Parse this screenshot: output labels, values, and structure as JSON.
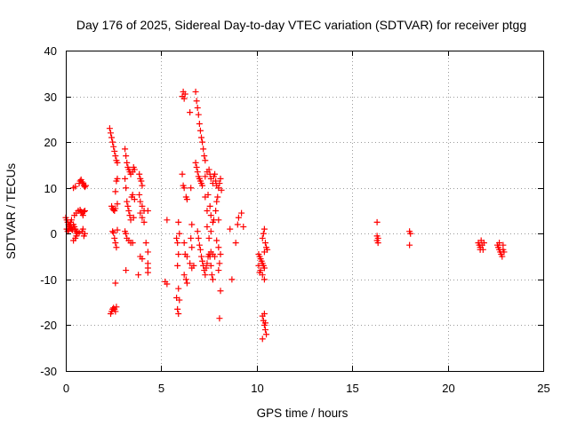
{
  "chart_data": {
    "type": "scatter",
    "title": "Day 176 of 2025, Sidereal Day-to-day VTEC variation (SDTVAR) for receiver ptgg",
    "xlabel": "GPS time / hours",
    "ylabel": "SDTVAR / TECUs",
    "xlim": [
      0,
      25
    ],
    "ylim": [
      -30,
      40
    ],
    "xticks": [
      0,
      5,
      10,
      15,
      20,
      25
    ],
    "yticks": [
      -30,
      -20,
      -10,
      0,
      10,
      20,
      30,
      40
    ],
    "grid": true,
    "marker": "plus",
    "color": "#ff0000",
    "series": [
      {
        "name": "SDTVAR",
        "points": [
          [
            0.0,
            3.5
          ],
          [
            0.05,
            3.0
          ],
          [
            0.1,
            2.5
          ],
          [
            0.15,
            2.0
          ],
          [
            0.2,
            1.5
          ],
          [
            0.25,
            1.2
          ],
          [
            0.3,
            1.0
          ],
          [
            0.35,
            0.8
          ],
          [
            0.05,
            1.0
          ],
          [
            0.1,
            0.5
          ],
          [
            0.15,
            0.8
          ],
          [
            0.2,
            1.8
          ],
          [
            0.25,
            2.5
          ],
          [
            0.3,
            3.0
          ],
          [
            0.4,
            2.0
          ],
          [
            0.45,
            1.5
          ],
          [
            0.5,
            1.0
          ],
          [
            0.55,
            0.5
          ],
          [
            0.6,
            0.3
          ],
          [
            0.4,
            -1.5
          ],
          [
            0.5,
            -1.0
          ],
          [
            0.55,
            -0.5
          ],
          [
            0.6,
            0.0
          ],
          [
            0.7,
            0.2
          ],
          [
            0.85,
            0.5
          ],
          [
            0.9,
            1.0
          ],
          [
            0.95,
            -0.5
          ],
          [
            1.0,
            0.0
          ],
          [
            0.45,
            4.0
          ],
          [
            0.55,
            4.5
          ],
          [
            0.65,
            5.0
          ],
          [
            0.75,
            5.2
          ],
          [
            0.8,
            4.8
          ],
          [
            0.85,
            4.5
          ],
          [
            0.9,
            4.0
          ],
          [
            0.95,
            4.8
          ],
          [
            1.0,
            5.0
          ],
          [
            0.4,
            10.0
          ],
          [
            0.5,
            10.3
          ],
          [
            0.7,
            11.0
          ],
          [
            0.75,
            11.5
          ],
          [
            0.8,
            11.8
          ],
          [
            0.85,
            11.3
          ],
          [
            0.9,
            11.0
          ],
          [
            0.95,
            10.5
          ],
          [
            1.0,
            10.2
          ],
          [
            1.05,
            10.5
          ],
          [
            2.3,
            23.0
          ],
          [
            2.35,
            22.0
          ],
          [
            2.4,
            21.0
          ],
          [
            2.45,
            20.0
          ],
          [
            2.5,
            19.0
          ],
          [
            2.55,
            18.0
          ],
          [
            2.6,
            17.0
          ],
          [
            2.65,
            16.0
          ],
          [
            2.7,
            15.5
          ],
          [
            2.4,
            6.0
          ],
          [
            2.45,
            5.5
          ],
          [
            2.5,
            5.2
          ],
          [
            2.55,
            5.0
          ],
          [
            2.6,
            5.5
          ],
          [
            2.7,
            6.5
          ],
          [
            2.6,
            9.2
          ],
          [
            2.65,
            11.5
          ],
          [
            2.7,
            12.0
          ],
          [
            2.45,
            0.5
          ],
          [
            2.5,
            0.2
          ],
          [
            2.55,
            -1.0
          ],
          [
            2.6,
            -2.0
          ],
          [
            2.65,
            -3.0
          ],
          [
            2.7,
            0.8
          ],
          [
            2.6,
            -10.8
          ],
          [
            2.35,
            -17.5
          ],
          [
            2.4,
            -17.0
          ],
          [
            2.45,
            -16.5
          ],
          [
            2.5,
            -16.2
          ],
          [
            2.55,
            -16.5
          ],
          [
            2.6,
            -17.0
          ],
          [
            2.65,
            -16.0
          ],
          [
            3.1,
            18.5
          ],
          [
            3.15,
            17.0
          ],
          [
            3.2,
            15.5
          ],
          [
            3.25,
            14.5
          ],
          [
            3.3,
            14.0
          ],
          [
            3.35,
            13.5
          ],
          [
            3.4,
            13.0
          ],
          [
            3.5,
            13.5
          ],
          [
            3.55,
            14.5
          ],
          [
            3.6,
            14.0
          ],
          [
            3.1,
            12.0
          ],
          [
            3.15,
            10.0
          ],
          [
            3.2,
            7.0
          ],
          [
            3.25,
            6.0
          ],
          [
            3.3,
            5.0
          ],
          [
            3.35,
            4.0
          ],
          [
            3.4,
            3.0
          ],
          [
            3.45,
            8.0
          ],
          [
            3.5,
            8.5
          ],
          [
            3.55,
            3.5
          ],
          [
            3.6,
            7.5
          ],
          [
            3.1,
            0.5
          ],
          [
            3.15,
            0.0
          ],
          [
            3.2,
            -1.0
          ],
          [
            3.3,
            -1.5
          ],
          [
            3.4,
            -2.0
          ],
          [
            3.5,
            -2.0
          ],
          [
            3.15,
            -8.0
          ],
          [
            3.85,
            13.0
          ],
          [
            3.9,
            12.0
          ],
          [
            3.95,
            11.5
          ],
          [
            4.0,
            10.5
          ],
          [
            3.85,
            8.5
          ],
          [
            3.9,
            7.0
          ],
          [
            4.0,
            6.0
          ],
          [
            4.1,
            5.0
          ],
          [
            3.9,
            4.5
          ],
          [
            4.0,
            3.5
          ],
          [
            4.1,
            2.5
          ],
          [
            4.3,
            5.0
          ],
          [
            4.2,
            -2.0
          ],
          [
            4.3,
            -4.0
          ],
          [
            4.3,
            -6.5
          ],
          [
            4.3,
            -7.5
          ],
          [
            4.3,
            -8.5
          ],
          [
            3.9,
            -5.0
          ],
          [
            4.0,
            -5.5
          ],
          [
            3.8,
            -9.0
          ],
          [
            5.3,
            3.0
          ],
          [
            5.2,
            -10.5
          ],
          [
            5.3,
            -11.0
          ],
          [
            5.8,
            -1.0
          ],
          [
            5.85,
            -2.0
          ],
          [
            5.9,
            -4.5
          ],
          [
            5.85,
            -7.0
          ],
          [
            5.9,
            -12.0
          ],
          [
            5.95,
            -14.5
          ],
          [
            5.8,
            -14.0
          ],
          [
            5.85,
            -16.5
          ],
          [
            5.9,
            -17.5
          ],
          [
            5.9,
            2.5
          ],
          [
            5.95,
            0.0
          ],
          [
            6.1,
            30.0
          ],
          [
            6.15,
            31.0
          ],
          [
            6.2,
            29.5
          ],
          [
            6.25,
            30.5
          ],
          [
            6.1,
            13.0
          ],
          [
            6.15,
            10.5
          ],
          [
            6.2,
            10.0
          ],
          [
            6.3,
            8.0
          ],
          [
            6.35,
            7.5
          ],
          [
            6.2,
            -2.0
          ],
          [
            6.25,
            -4.5
          ],
          [
            6.35,
            -5.0
          ],
          [
            6.2,
            -9.0
          ],
          [
            6.3,
            -10.0
          ],
          [
            6.35,
            -10.8
          ],
          [
            6.5,
            -6.5
          ],
          [
            6.6,
            -7.5
          ],
          [
            6.5,
            26.5
          ],
          [
            6.55,
            10.0
          ],
          [
            6.6,
            2.0
          ],
          [
            6.55,
            -1.0
          ],
          [
            6.6,
            -3.0
          ],
          [
            6.7,
            -7.0
          ],
          [
            6.8,
            31.0
          ],
          [
            6.85,
            29.0
          ],
          [
            6.9,
            27.5
          ],
          [
            6.95,
            26.0
          ],
          [
            7.0,
            24.0
          ],
          [
            7.05,
            22.5
          ],
          [
            7.1,
            21.0
          ],
          [
            7.15,
            20.0
          ],
          [
            7.2,
            18.5
          ],
          [
            7.25,
            17.0
          ],
          [
            7.3,
            16.0
          ],
          [
            6.8,
            15.5
          ],
          [
            6.85,
            14.5
          ],
          [
            6.9,
            13.5
          ],
          [
            6.95,
            12.5
          ],
          [
            7.0,
            12.0
          ],
          [
            7.05,
            11.5
          ],
          [
            7.1,
            11.0
          ],
          [
            7.15,
            10.5
          ],
          [
            7.3,
            12.5
          ],
          [
            7.4,
            13.5
          ],
          [
            7.5,
            14.0
          ],
          [
            7.55,
            13.0
          ],
          [
            7.6,
            12.0
          ],
          [
            7.7,
            11.0
          ],
          [
            7.75,
            12.5
          ],
          [
            7.8,
            13.0
          ],
          [
            7.85,
            11.5
          ],
          [
            7.9,
            10.5
          ],
          [
            8.0,
            10.0
          ],
          [
            8.05,
            11.0
          ],
          [
            8.1,
            12.0
          ],
          [
            8.15,
            9.5
          ],
          [
            7.3,
            8.0
          ],
          [
            7.45,
            8.5
          ],
          [
            7.4,
            5.0
          ],
          [
            7.55,
            6.0
          ],
          [
            7.6,
            4.0
          ],
          [
            7.7,
            2.5
          ],
          [
            7.75,
            3.0
          ],
          [
            7.9,
            7.0
          ],
          [
            7.95,
            8.0
          ],
          [
            7.85,
            5.0
          ],
          [
            8.0,
            3.0
          ],
          [
            6.9,
            0.5
          ],
          [
            6.95,
            -1.0
          ],
          [
            7.0,
            -2.5
          ],
          [
            7.05,
            -3.5
          ],
          [
            7.1,
            -5.0
          ],
          [
            7.15,
            -6.0
          ],
          [
            7.2,
            -7.0
          ],
          [
            7.25,
            -8.0
          ],
          [
            7.3,
            -9.0
          ],
          [
            7.35,
            -7.5
          ],
          [
            7.4,
            -6.5
          ],
          [
            7.45,
            -5.0
          ],
          [
            7.5,
            -4.5
          ],
          [
            7.55,
            -5.0
          ],
          [
            7.6,
            -4.0
          ],
          [
            7.7,
            -4.5
          ],
          [
            7.8,
            -5.0
          ],
          [
            7.5,
            -1.0
          ],
          [
            7.6,
            0.5
          ],
          [
            7.4,
            1.5
          ],
          [
            7.6,
            -7.0
          ],
          [
            7.65,
            -9.0
          ],
          [
            7.7,
            -10.0
          ],
          [
            7.9,
            -1.5
          ],
          [
            8.0,
            -3.0
          ],
          [
            8.1,
            -4.5
          ],
          [
            8.05,
            -6.5
          ],
          [
            8.0,
            -8.0
          ],
          [
            8.1,
            -12.5
          ],
          [
            8.05,
            -18.5
          ],
          [
            8.6,
            1.0
          ],
          [
            8.7,
            -10.0
          ],
          [
            8.9,
            -2.0
          ],
          [
            9.0,
            2.0
          ],
          [
            9.05,
            3.5
          ],
          [
            9.2,
            4.5
          ],
          [
            9.3,
            1.5
          ],
          [
            10.1,
            -4.5
          ],
          [
            10.15,
            -5.0
          ],
          [
            10.2,
            -5.5
          ],
          [
            10.25,
            -6.0
          ],
          [
            10.3,
            -6.5
          ],
          [
            10.35,
            -7.0
          ],
          [
            10.4,
            -7.5
          ],
          [
            10.2,
            -8.0
          ],
          [
            10.3,
            -9.0
          ],
          [
            10.4,
            -10.0
          ],
          [
            10.1,
            -7.0
          ],
          [
            10.15,
            -8.5
          ],
          [
            10.3,
            -1.0
          ],
          [
            10.35,
            0.0
          ],
          [
            10.4,
            1.0
          ],
          [
            10.45,
            -2.0
          ],
          [
            10.5,
            -3.0
          ],
          [
            10.55,
            -3.5
          ],
          [
            10.4,
            -4.0
          ],
          [
            10.3,
            -18.0
          ],
          [
            10.35,
            -19.0
          ],
          [
            10.4,
            -20.0
          ],
          [
            10.45,
            -21.0
          ],
          [
            10.5,
            -22.0
          ],
          [
            10.3,
            -23.0
          ],
          [
            10.4,
            -17.5
          ],
          [
            10.45,
            -19.5
          ],
          [
            16.3,
            2.5
          ],
          [
            16.3,
            -0.5
          ],
          [
            16.35,
            -1.0
          ],
          [
            16.3,
            -1.5
          ],
          [
            16.35,
            -2.0
          ],
          [
            18.0,
            0.5
          ],
          [
            18.05,
            0.0
          ],
          [
            18.0,
            -2.5
          ],
          [
            21.6,
            -2.0
          ],
          [
            21.65,
            -2.5
          ],
          [
            21.7,
            -3.0
          ],
          [
            21.75,
            -1.5
          ],
          [
            21.8,
            -2.5
          ],
          [
            21.85,
            -3.5
          ],
          [
            21.9,
            -2.0
          ],
          [
            21.7,
            -3.5
          ],
          [
            22.6,
            -2.5
          ],
          [
            22.65,
            -3.0
          ],
          [
            22.7,
            -3.5
          ],
          [
            22.75,
            -4.0
          ],
          [
            22.8,
            -4.5
          ],
          [
            22.85,
            -5.0
          ],
          [
            22.9,
            -3.5
          ],
          [
            22.95,
            -4.0
          ],
          [
            22.7,
            -2.0
          ],
          [
            22.9,
            -2.5
          ]
        ]
      }
    ]
  }
}
